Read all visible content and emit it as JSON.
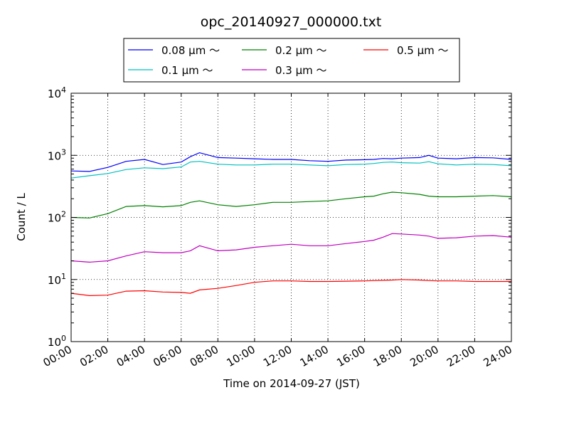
{
  "chart_data": {
    "type": "line",
    "title": "opc_20140927_000000.txt",
    "xlabel": "Time on 2014-09-27 (JST)",
    "ylabel": "Count / L",
    "x_unit": "hour",
    "xlim": [
      0,
      24
    ],
    "ylim": [
      1,
      10000
    ],
    "yscale": "log",
    "grid": true,
    "legend_position": "top-center",
    "x_ticks": [
      "00:00",
      "02:00",
      "04:00",
      "06:00",
      "08:00",
      "10:00",
      "12:00",
      "14:00",
      "16:00",
      "18:00",
      "20:00",
      "22:00",
      "24:00"
    ],
    "y_ticks": [
      {
        "base": "10",
        "exp": "0",
        "value": 1
      },
      {
        "base": "10",
        "exp": "1",
        "value": 10
      },
      {
        "base": "10",
        "exp": "2",
        "value": 100
      },
      {
        "base": "10",
        "exp": "3",
        "value": 1000
      },
      {
        "base": "10",
        "exp": "4",
        "value": 10000
      }
    ],
    "x": [
      0,
      1,
      2,
      3,
      4,
      5,
      6,
      6.5,
      7,
      8,
      9,
      10,
      11,
      12,
      13,
      14,
      15,
      16,
      16.5,
      17,
      17.5,
      18,
      19,
      19.5,
      20,
      21,
      22,
      23,
      24
    ],
    "series": [
      {
        "name": "0.08 μm ～",
        "color": "#0000ff",
        "values": [
          560,
          550,
          640,
          800,
          860,
          710,
          780,
          950,
          1100,
          920,
          900,
          880,
          860,
          860,
          820,
          800,
          840,
          850,
          860,
          890,
          880,
          900,
          920,
          1000,
          900,
          880,
          920,
          910,
          860
        ]
      },
      {
        "name": "0.1 μm ～",
        "color": "#00bfbf",
        "values": [
          430,
          470,
          510,
          590,
          630,
          610,
          650,
          780,
          800,
          720,
          700,
          700,
          720,
          720,
          700,
          680,
          710,
          720,
          740,
          770,
          780,
          760,
          750,
          790,
          730,
          700,
          720,
          710,
          680
        ]
      },
      {
        "name": "0.2 μm ～",
        "color": "#008000",
        "values": [
          100,
          98,
          115,
          150,
          155,
          148,
          155,
          175,
          185,
          160,
          150,
          160,
          175,
          175,
          180,
          185,
          200,
          215,
          220,
          240,
          255,
          250,
          235,
          220,
          215,
          215,
          220,
          225,
          215
        ]
      },
      {
        "name": "0.3 μm ～",
        "color": "#bf00bf",
        "values": [
          20,
          19,
          20,
          24,
          28,
          27,
          27,
          29,
          35,
          29,
          30,
          33,
          35,
          37,
          35,
          35,
          38,
          41,
          43,
          48,
          55,
          54,
          52,
          50,
          46,
          47,
          50,
          51,
          48
        ]
      },
      {
        "name": "0.5 μm ～",
        "color": "#ff0000",
        "values": [
          6,
          5.5,
          5.6,
          6.5,
          6.6,
          6.3,
          6.2,
          6.0,
          6.8,
          7.2,
          8,
          9,
          9.5,
          9.5,
          9.3,
          9.3,
          9.4,
          9.5,
          9.6,
          9.7,
          9.8,
          10,
          9.8,
          9.6,
          9.5,
          9.5,
          9.3,
          9.3,
          9.3
        ]
      }
    ]
  }
}
